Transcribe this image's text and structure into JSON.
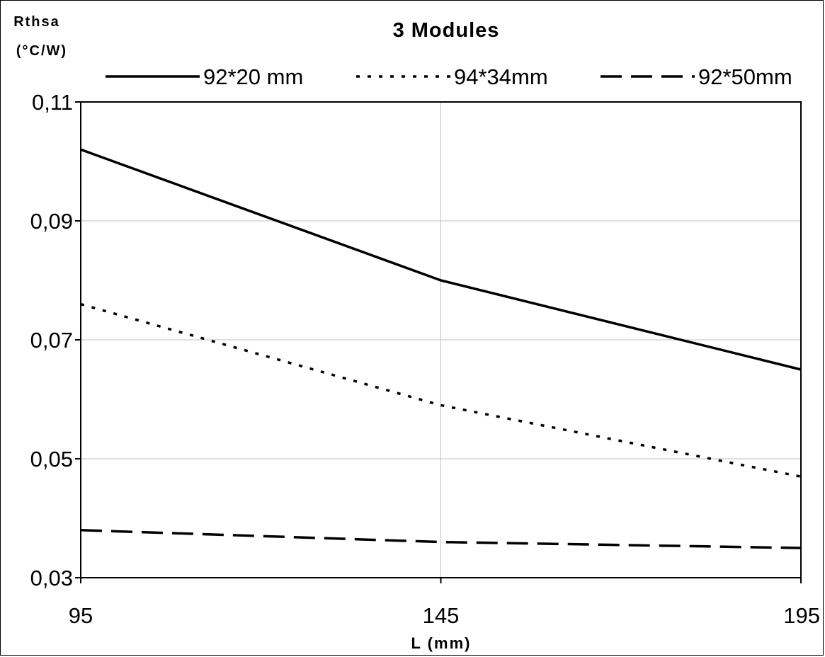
{
  "chart_data": {
    "type": "line",
    "title": "3 Modules",
    "ylabel": "Rthsa",
    "ylabel_unit": "(°C/W)",
    "xlabel": "L (mm)",
    "xlim": [
      95,
      195
    ],
    "ylim": [
      0.03,
      0.11
    ],
    "x_ticks": [
      "95",
      "145",
      "195"
    ],
    "y_ticks": [
      "0,11",
      "0,09",
      "0,07",
      "0,05",
      "0,03"
    ],
    "x_tick_values": [
      95,
      145,
      195
    ],
    "y_tick_values": [
      0.11,
      0.09,
      0.07,
      0.05,
      0.03
    ],
    "grid": true,
    "legend_position": "top",
    "series": [
      {
        "name": "92*20 mm",
        "style": "solid",
        "x": [
          95,
          145,
          195
        ],
        "values": [
          0.102,
          0.08,
          0.065
        ]
      },
      {
        "name": "94*34mm",
        "style": "dotted",
        "x": [
          95,
          145,
          195
        ],
        "values": [
          0.076,
          0.059,
          0.047
        ]
      },
      {
        "name": "92*50mm",
        "style": "dashed",
        "x": [
          95,
          145,
          195
        ],
        "values": [
          0.038,
          0.036,
          0.035
        ]
      }
    ],
    "colors": {
      "line": "#000000",
      "grid": "#c0c0c0",
      "background": "#ffffff"
    }
  }
}
